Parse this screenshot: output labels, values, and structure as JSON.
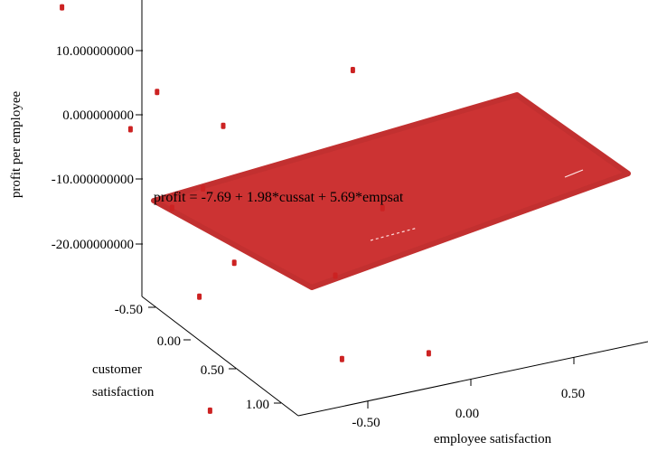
{
  "chart_data": {
    "type": "scatter",
    "subtype": "3d-scatter-with-regression-plane",
    "title": "",
    "zlabel": "profit per employee",
    "ylabel_lines": [
      "customer",
      "satisfaction"
    ],
    "xlabel": "employee satisfaction",
    "z_ticks": [
      "10.000000000",
      "0.000000000",
      "-10.000000000",
      "-20.000000000"
    ],
    "y_ticks": [
      "-0.50",
      "0.00",
      "0.50",
      "1.00"
    ],
    "x_ticks": [
      "-0.50",
      "0.00",
      "0.50"
    ],
    "annotation": "profit = -7.69 + 1.98*cussat + 5.69*empsat",
    "plane": {
      "intercept": -7.69,
      "cussat_coef": 1.98,
      "empsat_coef": 5.69
    },
    "colors": {
      "plane": "#cc3333",
      "points": "#cc2222",
      "axis": "#000000"
    },
    "points": [
      {
        "empsat": -0.45,
        "cussat": -0.7,
        "profit": 10.5
      },
      {
        "empsat": -0.6,
        "cussat": -0.65,
        "profit": 7.0
      },
      {
        "empsat": -0.35,
        "cussat": -0.7,
        "profit": 6.0
      },
      {
        "empsat": -0.2,
        "cussat": -0.8,
        "profit": 8.0
      },
      {
        "empsat": 0.05,
        "cussat": -0.75,
        "profit": 4.5
      },
      {
        "empsat": 0.25,
        "cussat": -0.85,
        "profit": 9.0
      },
      {
        "empsat": 0.65,
        "cussat": -0.45,
        "profit": -7.0
      },
      {
        "empsat": -0.55,
        "cussat": -0.3,
        "profit": -5.0
      },
      {
        "empsat": -0.3,
        "cussat": -0.45,
        "profit": -4.0
      },
      {
        "empsat": -0.1,
        "cussat": -0.3,
        "profit": -7.5
      },
      {
        "empsat": -0.55,
        "cussat": -0.05,
        "profit": -12.0
      },
      {
        "empsat": -0.7,
        "cussat": 0.3,
        "profit": -17.5
      },
      {
        "empsat": -0.45,
        "cussat": 0.2,
        "profit": -16.0
      },
      {
        "empsat": -0.4,
        "cussat": -0.05,
        "profit": -10.0
      },
      {
        "empsat": 0.0,
        "cussat": 0.25,
        "profit": -20.0
      },
      {
        "empsat": 0.35,
        "cussat": 0.1,
        "profit": -15.0
      },
      {
        "empsat": -0.25,
        "cussat": 0.6,
        "profit": -24.0
      },
      {
        "empsat": 0.05,
        "cussat": 0.75,
        "profit": -22.0
      },
      {
        "empsat": -0.85,
        "cussat": 0.55,
        "profit": -29.0
      }
    ]
  }
}
